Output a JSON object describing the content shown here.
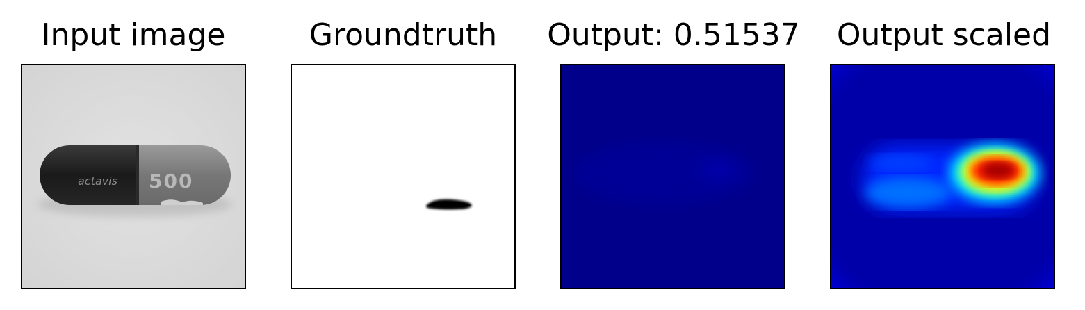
{
  "panels": [
    {
      "title": "Input image"
    },
    {
      "title": "Groundtruth"
    },
    {
      "title": "Output: 0.51537"
    },
    {
      "title": "Output scaled"
    }
  ],
  "capsule": {
    "brand": "actavis",
    "strength": "500"
  },
  "colors": {
    "background": "#ffffff",
    "frame": "#000000",
    "jet_dark_blue": "#000080",
    "jet_blue": "#0000ff",
    "jet_cyan": "#00ffff",
    "jet_yellow": "#ffff00",
    "jet_red": "#ff0000",
    "jet_dark_red": "#800000"
  }
}
